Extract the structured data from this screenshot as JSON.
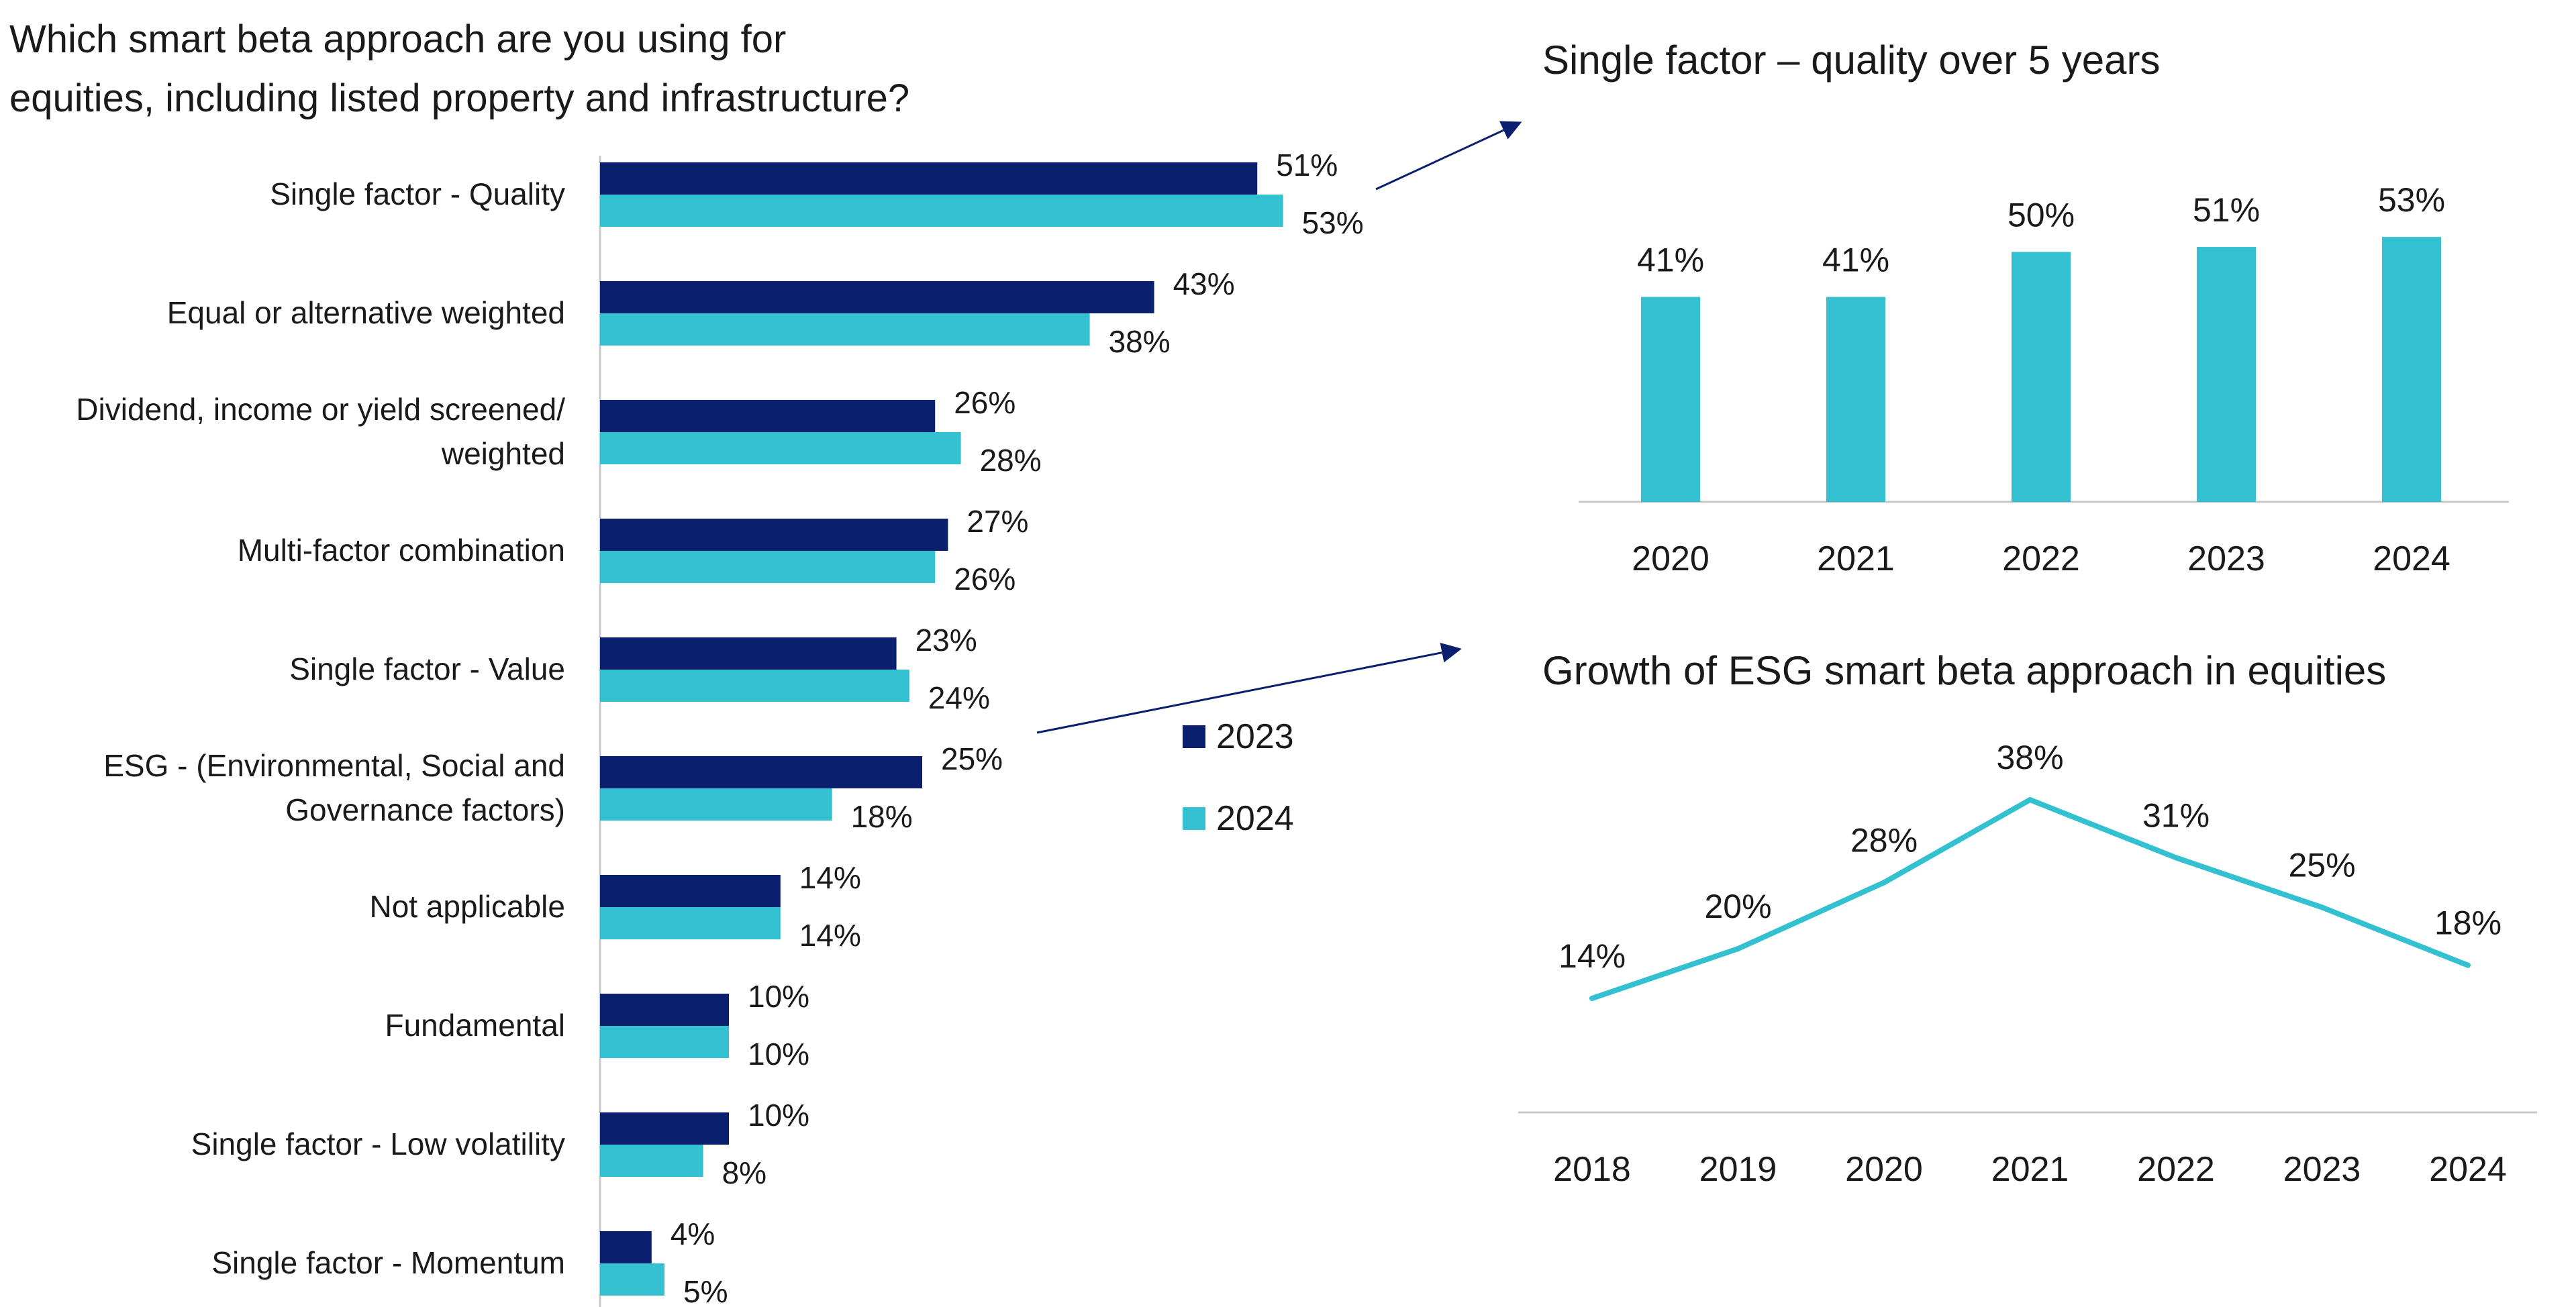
{
  "chart_data": [
    {
      "type": "bar",
      "orientation": "horizontal",
      "title_lines": [
        "Which smart beta approach are you using for",
        "equities, including listed property and infrastructure?"
      ],
      "categories": [
        [
          "Single factor - Quality"
        ],
        [
          "Equal or alternative weighted"
        ],
        [
          "Dividend, income or yield screened/",
          "weighted"
        ],
        [
          "Multi-factor combination"
        ],
        [
          "Single factor - Value"
        ],
        [
          "ESG - (Environmental, Social and",
          "Governance factors)"
        ],
        [
          "Not applicable"
        ],
        [
          "Fundamental"
        ],
        [
          "Single factor - Low volatility"
        ],
        [
          "Single factor - Momentum"
        ]
      ],
      "series": [
        {
          "name": "2023",
          "color": "#0a1f6e",
          "values": [
            51,
            43,
            26,
            27,
            23,
            25,
            14,
            10,
            10,
            4
          ],
          "labels": [
            "51%",
            "43%",
            "26%",
            "27%",
            "23%",
            "25%",
            "14%",
            "10%",
            "10%",
            "4%"
          ]
        },
        {
          "name": "2024",
          "color": "#33c1d1",
          "values": [
            53,
            38,
            28,
            26,
            24,
            18,
            14,
            10,
            8,
            5
          ],
          "labels": [
            "53%",
            "38%",
            "28%",
            "26%",
            "24%",
            "18%",
            "14%",
            "10%",
            "8%",
            "5%"
          ]
        }
      ],
      "xlim": [
        0,
        100
      ],
      "legend": "right",
      "grid": false
    },
    {
      "type": "bar",
      "title": "Single factor – quality over 5 years",
      "categories": [
        "2020",
        "2021",
        "2022",
        "2023",
        "2024"
      ],
      "values": [
        41,
        41,
        50,
        51,
        53
      ],
      "labels": [
        "41%",
        "41%",
        "50%",
        "51%",
        "53%"
      ],
      "color": "#33c1d1",
      "ylim": [
        0,
        60
      ],
      "grid": false
    },
    {
      "type": "line",
      "title": "Growth of ESG smart beta approach in equities",
      "x": [
        "2018",
        "2019",
        "2020",
        "2021",
        "2022",
        "2023",
        "2024"
      ],
      "values": [
        14,
        20,
        28,
        38,
        31,
        25,
        18
      ],
      "labels": [
        "14%",
        "20%",
        "28%",
        "38%",
        "31%",
        "25%",
        "18%"
      ],
      "color": "#33c1d1",
      "grid": false
    }
  ]
}
